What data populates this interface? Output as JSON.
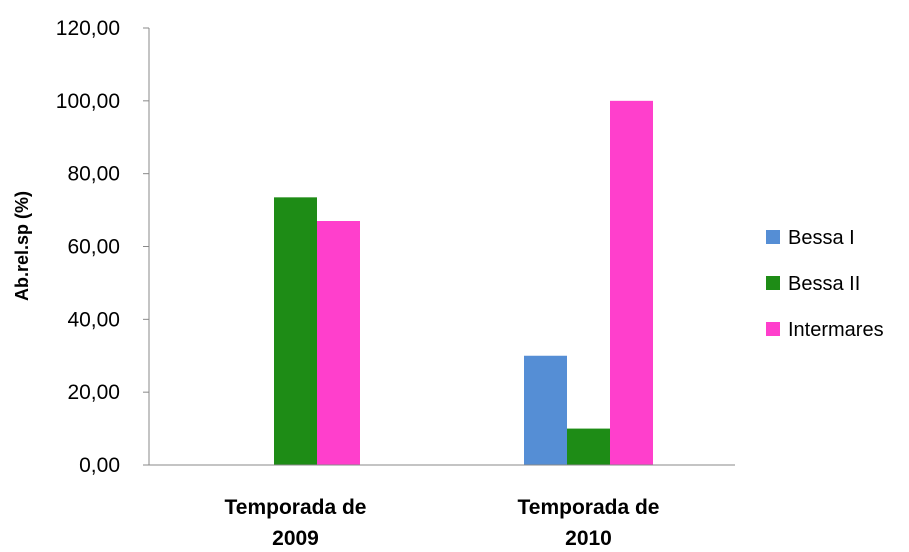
{
  "chart_data": {
    "type": "bar",
    "categories": [
      [
        "Temporada de",
        "2009"
      ],
      [
        "Temporada de",
        "2010"
      ]
    ],
    "series": [
      {
        "name": "Bessa I",
        "color": "#558ED5",
        "values": [
          0,
          30.0
        ]
      },
      {
        "name": "Bessa II",
        "color": "#1E8C16",
        "values": [
          73.5,
          10.0
        ]
      },
      {
        "name": "Intermares",
        "color": "#FF3FCC",
        "values": [
          67.0,
          100.0
        ]
      }
    ],
    "ylabel": "Ab.rel.sp (%)",
    "xlabel": "",
    "ylim": [
      0,
      120
    ],
    "yticks": [
      "0,00",
      "20,00",
      "40,00",
      "60,00",
      "80,00",
      "100,00",
      "120,00"
    ],
    "grid": false,
    "legend": "right"
  }
}
